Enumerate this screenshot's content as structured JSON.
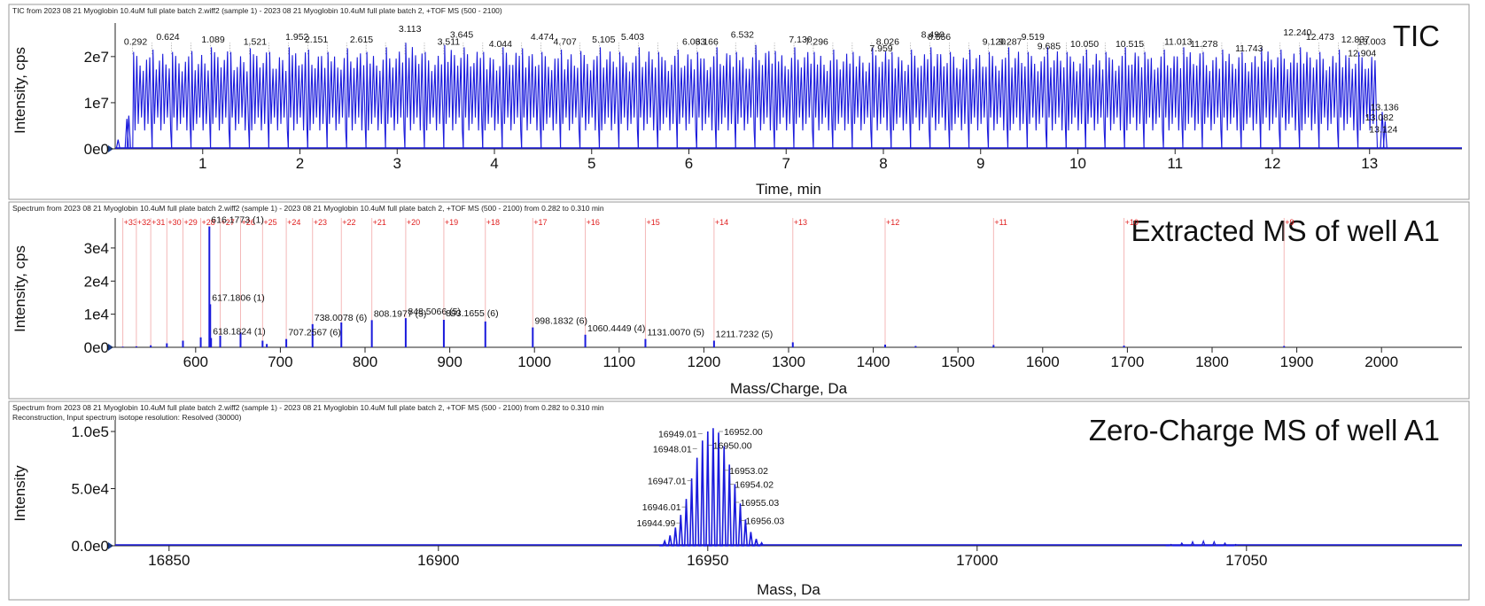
{
  "chart_data": [
    {
      "type": "line",
      "header": "TIC from 2023 08 21 Myoglobin 10.4uM full plate batch 2.wiff2 (sample 1) - 2023 08 21 Myoglobin 10.4uM full plate batch 2, +TOF MS (500 - 2100)",
      "tag": "TIC",
      "xlabel": "Time, min",
      "ylabel": "Intensity, cps",
      "xlim": [
        0.1,
        13.95
      ],
      "ylim": [
        0,
        26500000.0
      ],
      "xticks": [
        1,
        2,
        3,
        4,
        5,
        6,
        7,
        8,
        9,
        10,
        11,
        12,
        13
      ],
      "yticks": [
        {
          "v": 0,
          "label": "0e0"
        },
        {
          "v": 10000000.0,
          "label": "1e7"
        },
        {
          "v": 20000000.0,
          "label": "2e7"
        }
      ],
      "color": "#1a1adc",
      "baseline_intensity": 4000000.0,
      "series": {
        "x": [
          0.28,
          0.48,
          0.68,
          0.88,
          1.08,
          1.28,
          1.48,
          1.68,
          1.88,
          2.08,
          2.28,
          2.48,
          2.68,
          2.88,
          3.08,
          3.28,
          3.48,
          3.68,
          3.88,
          4.08,
          4.28,
          4.48,
          4.68,
          4.88,
          5.08,
          5.28,
          5.48,
          5.68,
          5.88,
          6.08,
          6.28,
          6.48,
          6.68,
          6.88,
          7.08,
          7.28,
          7.48,
          7.68,
          7.88,
          8.08,
          8.28,
          8.48,
          8.68,
          8.88,
          9.08,
          9.28,
          9.48,
          9.68,
          9.88,
          10.08,
          10.28,
          10.48,
          10.68,
          10.88,
          11.08,
          11.28,
          11.48,
          11.68,
          11.88,
          12.08,
          12.28,
          12.48,
          12.68,
          12.88
        ],
        "y": [
          21000000.0,
          21500000.0,
          21000000.0,
          21200000.0,
          22000000.0,
          21000000.0,
          21800000.0,
          21000000.0,
          22000000.0,
          21500000.0,
          21000000.0,
          21800000.0,
          21000000.0,
          22000000.0,
          23000000.0,
          21000000.0,
          22500000.0,
          22000000.0,
          21000000.0,
          22000000.0,
          21800000.0,
          21000000.0,
          21500000.0,
          21200000.0,
          22000000.0,
          21000000.0,
          22000000.0,
          21000000.0,
          21500000.0,
          21000000.0,
          22000000.0,
          21000000.0,
          22500000.0,
          21200000.0,
          22000000.0,
          21000000.0,
          21500000.0,
          21000000.0,
          22000000.0,
          21000000.0,
          21500000.0,
          22000000.0,
          21000000.0,
          21500000.0,
          21000000.0,
          22000000.0,
          21000000.0,
          22000000.0,
          21000000.0,
          21500000.0,
          21000000.0,
          22000000.0,
          21000000.0,
          21500000.0,
          22000000.0,
          21000000.0,
          21500000.0,
          21000000.0,
          22000000.0,
          21500000.0,
          22000000.0,
          21000000.0,
          21500000.0,
          21000000.0
        ]
      },
      "edge_peaks": [
        {
          "x": 0.13,
          "y": 2000000.0
        },
        {
          "x": 0.22,
          "y": 6500000.0
        },
        {
          "x": 0.24,
          "y": 7200000.0
        },
        {
          "x": 13.13,
          "y": 8000000.0
        },
        {
          "x": 13.16,
          "y": 6000000.0
        }
      ],
      "annotations": [
        {
          "x": 0.292,
          "y": 22000000.0,
          "label": "0.292"
        },
        {
          "x": 0.624,
          "y": 23000000.0,
          "label": "0.624"
        },
        {
          "x": 1.089,
          "y": 22500000.0,
          "label": "1.089"
        },
        {
          "x": 1.521,
          "y": 22000000.0,
          "label": "1.521"
        },
        {
          "x": 1.952,
          "y": 23000000.0,
          "label": "1.952"
        },
        {
          "x": 2.151,
          "y": 22500000.0,
          "label": "2.151"
        },
        {
          "x": 2.615,
          "y": 22500000.0,
          "label": "2.615"
        },
        {
          "x": 3.113,
          "y": 24800000.0,
          "label": "3.113"
        },
        {
          "x": 3.511,
          "y": 22000000.0,
          "label": "3.511"
        },
        {
          "x": 3.645,
          "y": 23500000.0,
          "label": "3.645"
        },
        {
          "x": 4.044,
          "y": 21500000.0,
          "label": "4.044"
        },
        {
          "x": 4.474,
          "y": 23000000.0,
          "label": "4.474"
        },
        {
          "x": 4.707,
          "y": 22000000.0,
          "label": "4.707"
        },
        {
          "x": 5.105,
          "y": 22500000.0,
          "label": "5.105"
        },
        {
          "x": 5.403,
          "y": 23000000.0,
          "label": "5.403"
        },
        {
          "x": 6.033,
          "y": 22000000.0,
          "label": "6.033"
        },
        {
          "x": 6.166,
          "y": 22000000.0,
          "label": "6.166"
        },
        {
          "x": 6.532,
          "y": 23500000.0,
          "label": "6.532"
        },
        {
          "x": 7.13,
          "y": 22500000.0,
          "label": "7.130"
        },
        {
          "x": 7.296,
          "y": 22000000.0,
          "label": "7.296"
        },
        {
          "x": 7.959,
          "y": 20500000.0,
          "label": "7.959"
        },
        {
          "x": 8.026,
          "y": 22000000.0,
          "label": "8.026"
        },
        {
          "x": 8.49,
          "y": 23500000.0,
          "label": "8.490"
        },
        {
          "x": 8.556,
          "y": 23000000.0,
          "label": "8.556"
        },
        {
          "x": 9.12,
          "y": 22000000.0,
          "label": "9.120"
        },
        {
          "x": 9.287,
          "y": 22000000.0,
          "label": "9.287"
        },
        {
          "x": 9.519,
          "y": 23000000.0,
          "label": "9.519"
        },
        {
          "x": 9.685,
          "y": 21000000.0,
          "label": "9.685"
        },
        {
          "x": 10.05,
          "y": 21500000.0,
          "label": "10.050"
        },
        {
          "x": 10.515,
          "y": 21500000.0,
          "label": "10.515"
        },
        {
          "x": 11.013,
          "y": 22000000.0,
          "label": "11.013"
        },
        {
          "x": 11.278,
          "y": 21500000.0,
          "label": "11.278"
        },
        {
          "x": 11.743,
          "y": 20500000.0,
          "label": "11.743"
        },
        {
          "x": 12.24,
          "y": 24000000.0,
          "label": "12.240"
        },
        {
          "x": 12.473,
          "y": 23000000.0,
          "label": "12.473"
        },
        {
          "x": 12.837,
          "y": 22500000.0,
          "label": "12.837"
        },
        {
          "x": 13.003,
          "y": 22000000.0,
          "label": "13.003"
        },
        {
          "x": 12.904,
          "y": 19500000.0,
          "label": "12.904"
        },
        {
          "x": 13.136,
          "y": 7800000.0,
          "label": "13.136"
        },
        {
          "x": 13.082,
          "y": 5600000.0,
          "label": "13.082"
        },
        {
          "x": 13.124,
          "y": 3000000.0,
          "label": "13.124"
        }
      ]
    },
    {
      "type": "bar",
      "header": "Spectrum from 2023 08 21 Myoglobin 10.4uM full plate batch 2.wiff2 (sample 1) - 2023 08 21 Myoglobin 10.4uM full plate batch 2, +TOF MS (500 - 2100) from 0.282 to 0.310 min",
      "tag": "Extracted MS of well A1",
      "xlabel": "Mass/Charge, Da",
      "ylabel": "Intensity, cps",
      "xlim": [
        505,
        2095
      ],
      "ylim": [
        0,
        38000
      ],
      "xticks": [
        600,
        700,
        800,
        900,
        1000,
        1100,
        1200,
        1300,
        1400,
        1500,
        1600,
        1700,
        1800,
        1900,
        2000
      ],
      "yticks": [
        {
          "v": 0,
          "label": "0e0"
        },
        {
          "v": 10000,
          "label": "1e4"
        },
        {
          "v": 20000,
          "label": "2e4"
        },
        {
          "v": 30000,
          "label": "3e4"
        }
      ],
      "color": "#1a1adc",
      "charge_color": "#e02020",
      "charge_states": [
        {
          "label": "+33",
          "mz": 514
        },
        {
          "label": "+32",
          "mz": 530
        },
        {
          "label": "+31",
          "mz": 547
        },
        {
          "label": "+30",
          "mz": 566
        },
        {
          "label": "+29",
          "mz": 585
        },
        {
          "label": "+28",
          "mz": 606
        },
        {
          "label": "+27",
          "mz": 629
        },
        {
          "label": "+26",
          "mz": 653
        },
        {
          "label": "+25",
          "mz": 679
        },
        {
          "label": "+24",
          "mz": 707
        },
        {
          "label": "+23",
          "mz": 738
        },
        {
          "label": "+22",
          "mz": 772
        },
        {
          "label": "+21",
          "mz": 808
        },
        {
          "label": "+20",
          "mz": 848
        },
        {
          "label": "+19",
          "mz": 893
        },
        {
          "label": "+18",
          "mz": 942
        },
        {
          "label": "+17",
          "mz": 998
        },
        {
          "label": "+16",
          "mz": 1060
        },
        {
          "label": "+15",
          "mz": 1131
        },
        {
          "label": "+14",
          "mz": 1212
        },
        {
          "label": "+13",
          "mz": 1305
        },
        {
          "label": "+12",
          "mz": 1414
        },
        {
          "label": "+11",
          "mz": 1542
        },
        {
          "label": "+10",
          "mz": 1696
        },
        {
          "label": "+9",
          "mz": 1885
        }
      ],
      "peaks": {
        "x": [
          514,
          530,
          547,
          566,
          585,
          606,
          616.2,
          617.2,
          618.2,
          629,
          653,
          679,
          684,
          707,
          738,
          772,
          808,
          848,
          893,
          942,
          998,
          1060,
          1131,
          1212,
          1305,
          1414,
          1450,
          1542,
          1696,
          1885
        ],
        "y": [
          200,
          300,
          600,
          1200,
          2000,
          3000,
          36500,
          13000,
          2800,
          3500,
          4500,
          2000,
          1000,
          2500,
          7000,
          7500,
          8200,
          8800,
          8300,
          7800,
          6000,
          3800,
          2500,
          2000,
          1500,
          800,
          400,
          700,
          500,
          400
        ]
      },
      "annotations": [
        {
          "x": 616.1773,
          "y": 36500,
          "label": "616.1773 (1)"
        },
        {
          "x": 617.1806,
          "y": 13000,
          "label": "617.1806 (1)"
        },
        {
          "x": 618.1824,
          "y": 2800,
          "label": "618.1824 (1)"
        },
        {
          "x": 738.0078,
          "y": 7000,
          "label": "738.0078 (6)"
        },
        {
          "x": 707.2567,
          "y": 2500,
          "label": "707.2567 (6)"
        },
        {
          "x": 808.1977,
          "y": 8200,
          "label": "808.1977 (5)"
        },
        {
          "x": 848.5066,
          "y": 8800,
          "label": "848.5066 (5)"
        },
        {
          "x": 893.1655,
          "y": 8300,
          "label": "893.1655 (6)"
        },
        {
          "x": 998.1832,
          "y": 6000,
          "label": "998.1832 (6)"
        },
        {
          "x": 1060.4449,
          "y": 3800,
          "label": "1060.4449 (4)"
        },
        {
          "x": 1131.007,
          "y": 2500,
          "label": "1131.0070 (5)"
        },
        {
          "x": 1211.7232,
          "y": 2000,
          "label": "1211.7232 (5)"
        }
      ]
    },
    {
      "type": "line",
      "header": "Spectrum from 2023 08 21 Myoglobin 10.4uM full plate batch 2.wiff2 (sample 1) - 2023 08 21 Myoglobin 10.4uM full plate batch 2, +TOF MS (500 - 2100) from 0.282 to 0.310 min",
      "header2": "Reconstruction, Input spectrum isotope resolution: Resolved (30000)",
      "tag": "Zero-Charge MS of well A1",
      "xlabel": "Mass, Da",
      "ylabel": "Intensity",
      "xlim": [
        16840,
        17090
      ],
      "ylim": [
        0,
        107000
      ],
      "xticks": [
        16850,
        16900,
        16950,
        17000,
        17050
      ],
      "yticks": [
        {
          "v": 0,
          "label": "0.0e0"
        },
        {
          "v": 50000,
          "label": "5.0e4"
        },
        {
          "v": 100000,
          "label": "1.0e5"
        }
      ],
      "color": "#1a1adc",
      "isotope_peaks": {
        "x": [
          16942,
          16943,
          16944,
          16944.99,
          16946.01,
          16947.01,
          16948.01,
          16949.01,
          16950,
          16951,
          16952,
          16953.02,
          16954.02,
          16955.03,
          16956.03,
          16957,
          16958,
          16959,
          16960
        ],
        "y": [
          4000,
          9000,
          16000,
          27000,
          41000,
          59000,
          77000,
          92000,
          100000,
          103000,
          99000,
          87000,
          71000,
          54000,
          37000,
          23000,
          12000,
          6000,
          2500
        ]
      },
      "minor_peaks": {
        "x": [
          17036,
          17038,
          17040,
          17042,
          17044,
          17046,
          17048
        ],
        "y": [
          1200,
          2400,
          3500,
          4000,
          3500,
          2400,
          1200
        ]
      },
      "annotations": [
        {
          "x": 16952.0,
          "y": 100000,
          "label": "16952.00"
        },
        {
          "x": 16949.01,
          "y": 98000,
          "label": "16949.01"
        },
        {
          "x": 16948.01,
          "y": 85000,
          "label": "16948.01"
        },
        {
          "x": 16950.0,
          "y": 88000,
          "label": "16950.00"
        },
        {
          "x": 16947.01,
          "y": 57000,
          "label": "16947.01"
        },
        {
          "x": 16953.02,
          "y": 66000,
          "label": "16953.02"
        },
        {
          "x": 16954.02,
          "y": 54000,
          "label": "16954.02"
        },
        {
          "x": 16946.01,
          "y": 34000,
          "label": "16946.01"
        },
        {
          "x": 16955.03,
          "y": 38000,
          "label": "16955.03"
        },
        {
          "x": 16944.99,
          "y": 20000,
          "label": "16944.99"
        },
        {
          "x": 16956.03,
          "y": 22000,
          "label": "16956.03"
        }
      ]
    }
  ]
}
